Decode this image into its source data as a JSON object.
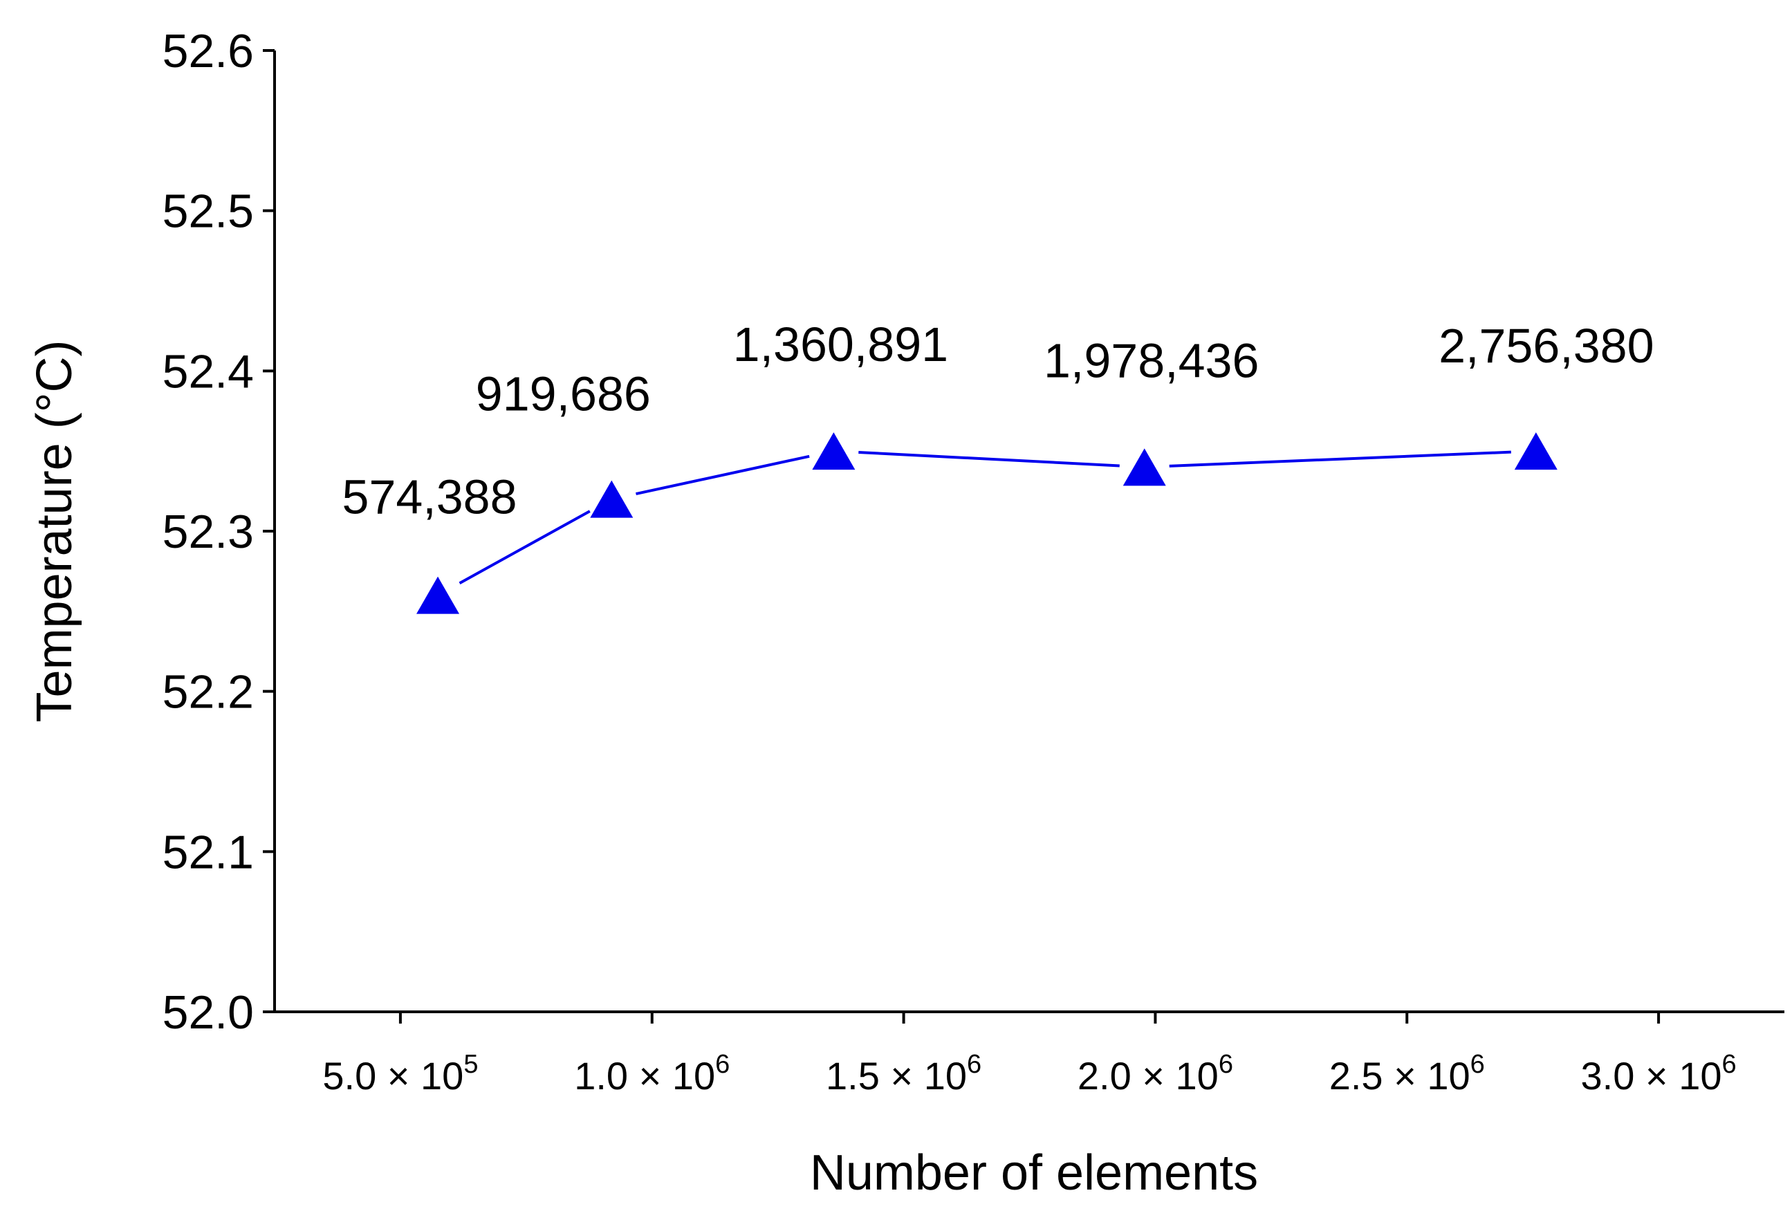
{
  "chart_data": {
    "type": "line",
    "title": "",
    "xlabel": "Number of elements",
    "ylabel": "Temperature (°C)",
    "xlim": [
      250000,
      3250000
    ],
    "ylim": [
      52.0,
      52.6
    ],
    "x_ticks": [
      {
        "value": 500000,
        "mantissa": "5.0",
        "exponent": "5"
      },
      {
        "value": 1000000,
        "mantissa": "1.0",
        "exponent": "6"
      },
      {
        "value": 1500000,
        "mantissa": "1.5",
        "exponent": "6"
      },
      {
        "value": 2000000,
        "mantissa": "2.0",
        "exponent": "6"
      },
      {
        "value": 2500000,
        "mantissa": "2.5",
        "exponent": "6"
      },
      {
        "value": 3000000,
        "mantissa": "3.0",
        "exponent": "6"
      }
    ],
    "y_ticks": [
      "52.0",
      "52.1",
      "52.2",
      "52.3",
      "52.4",
      "52.5",
      "52.6"
    ],
    "grid": false,
    "series": [
      {
        "name": "Temperature",
        "color": "#0000ee",
        "marker": "triangle",
        "x": [
          574388,
          919686,
          1360891,
          1978436,
          2756380
        ],
        "y": [
          52.26,
          52.32,
          52.35,
          52.34,
          52.35
        ],
        "labels": [
          "574,388",
          "919,686",
          "1,360,891",
          "1,978,436",
          "2,756,380"
        ]
      }
    ]
  }
}
